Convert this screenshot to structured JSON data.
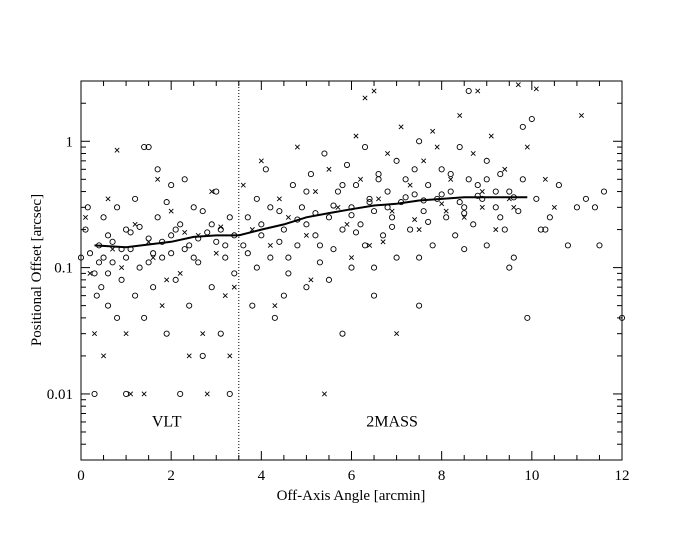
{
  "chart_data": {
    "type": "scatter",
    "title": "",
    "xlabel": "Off-Axis Angle [arcmin]",
    "ylabel": "Positional Offset [arcsec]",
    "xlim": [
      0,
      12
    ],
    "ylim": [
      0.003,
      3
    ],
    "yscale": "log",
    "xticks": [
      0,
      2,
      4,
      6,
      8,
      10,
      12
    ],
    "xtick_labels": [
      "0",
      "2",
      "4",
      "6",
      "8",
      "10",
      "12"
    ],
    "yticks": [
      0.01,
      0.1,
      1
    ],
    "ytick_labels": [
      "0.01",
      "0.1",
      "1"
    ],
    "grid": false,
    "divider_x": 3.5,
    "region_labels": [
      {
        "text": "VLT",
        "x": 1.9,
        "y": 0.0055
      },
      {
        "text": "2MASS",
        "x": 6.9,
        "y": 0.0055
      }
    ],
    "series": [
      {
        "name": "circles",
        "marker": "o",
        "points": [
          [
            0.0,
            0.12
          ],
          [
            0.1,
            0.2
          ],
          [
            0.3,
            0.01
          ],
          [
            0.3,
            0.09
          ],
          [
            0.35,
            0.06
          ],
          [
            0.4,
            0.15
          ],
          [
            0.45,
            0.07
          ],
          [
            0.5,
            0.12
          ],
          [
            0.5,
            0.25
          ],
          [
            0.6,
            0.05
          ],
          [
            0.6,
            0.18
          ],
          [
            0.7,
            0.11
          ],
          [
            0.8,
            0.04
          ],
          [
            0.8,
            0.3
          ],
          [
            0.9,
            0.08
          ],
          [
            1.0,
            0.2
          ],
          [
            1.0,
            0.01
          ],
          [
            1.1,
            0.14
          ],
          [
            1.2,
            0.06
          ],
          [
            1.2,
            0.35
          ],
          [
            1.3,
            0.1
          ],
          [
            1.4,
            0.04
          ],
          [
            1.4,
            0.9
          ],
          [
            1.5,
            0.17
          ],
          [
            1.5,
            0.9
          ],
          [
            1.6,
            0.07
          ],
          [
            1.7,
            0.25
          ],
          [
            1.7,
            0.6
          ],
          [
            1.8,
            0.12
          ],
          [
            1.9,
            0.03
          ],
          [
            2.0,
            0.18
          ],
          [
            2.0,
            0.45
          ],
          [
            2.1,
            0.08
          ],
          [
            2.2,
            0.01
          ],
          [
            2.2,
            0.22
          ],
          [
            2.3,
            0.14
          ],
          [
            2.4,
            0.05
          ],
          [
            2.5,
            0.3
          ],
          [
            2.6,
            0.11
          ],
          [
            2.7,
            0.02
          ],
          [
            2.8,
            0.19
          ],
          [
            2.9,
            0.07
          ],
          [
            3.0,
            0.16
          ],
          [
            3.0,
            0.4
          ],
          [
            3.1,
            0.03
          ],
          [
            3.2,
            0.12
          ],
          [
            3.3,
            0.25
          ],
          [
            3.3,
            0.01
          ],
          [
            3.4,
            0.09
          ],
          [
            0.2,
            0.13
          ],
          [
            0.7,
            0.16
          ],
          [
            1.1,
            0.19
          ],
          [
            1.6,
            0.13
          ],
          [
            2.1,
            0.2
          ],
          [
            2.6,
            0.17
          ],
          [
            3.1,
            0.2
          ],
          [
            0.4,
            0.11
          ],
          [
            0.9,
            0.14
          ],
          [
            1.3,
            0.21
          ],
          [
            1.8,
            0.16
          ],
          [
            2.4,
            0.15
          ],
          [
            2.9,
            0.22
          ],
          [
            3.4,
            0.18
          ],
          [
            0.6,
            0.09
          ],
          [
            1.0,
            0.12
          ],
          [
            1.5,
            0.11
          ],
          [
            2.0,
            0.13
          ],
          [
            2.5,
            0.12
          ],
          [
            3.2,
            0.15
          ],
          [
            0.15,
            0.3
          ],
          [
            1.9,
            0.33
          ],
          [
            2.7,
            0.28
          ],
          [
            2.3,
            0.5
          ],
          [
            3.6,
            0.15
          ],
          [
            3.7,
            0.25
          ],
          [
            3.8,
            0.05
          ],
          [
            3.9,
            0.35
          ],
          [
            4.0,
            0.18
          ],
          [
            4.1,
            0.6
          ],
          [
            4.2,
            0.12
          ],
          [
            4.3,
            0.04
          ],
          [
            4.4,
            0.28
          ],
          [
            4.5,
            0.2
          ],
          [
            4.6,
            0.09
          ],
          [
            4.7,
            0.45
          ],
          [
            4.8,
            0.15
          ],
          [
            4.9,
            0.3
          ],
          [
            5.0,
            0.07
          ],
          [
            5.0,
            0.22
          ],
          [
            5.1,
            0.55
          ],
          [
            5.2,
            0.18
          ],
          [
            5.3,
            0.11
          ],
          [
            5.4,
            0.8
          ],
          [
            5.5,
            0.25
          ],
          [
            5.6,
            0.14
          ],
          [
            5.7,
            0.4
          ],
          [
            5.8,
            0.03
          ],
          [
            5.8,
            0.2
          ],
          [
            5.9,
            0.65
          ],
          [
            6.0,
            0.3
          ],
          [
            6.0,
            0.1
          ],
          [
            6.1,
            0.45
          ],
          [
            6.2,
            0.22
          ],
          [
            6.3,
            0.9
          ],
          [
            6.3,
            0.15
          ],
          [
            6.4,
            0.35
          ],
          [
            6.5,
            0.06
          ],
          [
            6.5,
            0.28
          ],
          [
            6.6,
            0.55
          ],
          [
            6.7,
            0.18
          ],
          [
            6.8,
            0.4
          ],
          [
            6.9,
            0.25
          ],
          [
            7.0,
            0.7
          ],
          [
            7.0,
            0.12
          ],
          [
            7.1,
            0.33
          ],
          [
            7.2,
            0.5
          ],
          [
            7.3,
            0.2
          ],
          [
            7.4,
            0.38
          ],
          [
            7.5,
            0.05
          ],
          [
            7.5,
            1.0
          ],
          [
            7.6,
            0.28
          ],
          [
            7.7,
            0.45
          ],
          [
            7.8,
            0.15
          ],
          [
            7.9,
            0.35
          ],
          [
            8.0,
            0.6
          ],
          [
            8.1,
            0.25
          ],
          [
            8.2,
            0.4
          ],
          [
            8.3,
            0.18
          ],
          [
            8.4,
            0.9
          ],
          [
            8.5,
            0.3
          ],
          [
            8.6,
            0.5
          ],
          [
            8.7,
            0.22
          ],
          [
            8.8,
            0.45
          ],
          [
            8.9,
            0.35
          ],
          [
            9.0,
            0.15
          ],
          [
            9.0,
            0.7
          ],
          [
            9.2,
            0.3
          ],
          [
            9.3,
            0.55
          ],
          [
            9.4,
            0.2
          ],
          [
            9.5,
            0.4
          ],
          [
            9.6,
            0.12
          ],
          [
            9.7,
            0.28
          ],
          [
            9.8,
            0.5
          ],
          [
            9.9,
            0.04
          ],
          [
            10.0,
            1.5
          ],
          [
            10.1,
            0.35
          ],
          [
            10.2,
            0.2
          ],
          [
            10.4,
            0.25
          ],
          [
            10.6,
            0.45
          ],
          [
            10.8,
            0.15
          ],
          [
            11.0,
            0.3
          ],
          [
            11.2,
            0.35
          ],
          [
            11.4,
            0.3
          ],
          [
            11.5,
            0.15
          ],
          [
            11.6,
            0.4
          ],
          [
            12.0,
            0.04
          ],
          [
            8.6,
            2.5
          ],
          [
            9.8,
            1.3
          ],
          [
            10.3,
            0.2
          ],
          [
            3.7,
            0.13
          ],
          [
            4.0,
            0.22
          ],
          [
            4.4,
            0.16
          ],
          [
            4.8,
            0.24
          ],
          [
            5.2,
            0.27
          ],
          [
            5.6,
            0.31
          ],
          [
            6.0,
            0.26
          ],
          [
            6.4,
            0.33
          ],
          [
            6.8,
            0.3
          ],
          [
            7.2,
            0.36
          ],
          [
            7.6,
            0.34
          ],
          [
            8.0,
            0.38
          ],
          [
            8.4,
            0.33
          ],
          [
            8.8,
            0.37
          ],
          [
            9.2,
            0.4
          ],
          [
            9.6,
            0.36
          ],
          [
            3.9,
            0.1
          ],
          [
            4.6,
            0.12
          ],
          [
            5.3,
            0.15
          ],
          [
            6.1,
            0.19
          ],
          [
            6.9,
            0.21
          ],
          [
            7.7,
            0.23
          ],
          [
            8.5,
            0.27
          ],
          [
            9.3,
            0.25
          ],
          [
            4.2,
            0.3
          ],
          [
            5.0,
            0.4
          ],
          [
            5.8,
            0.45
          ],
          [
            6.6,
            0.5
          ],
          [
            7.4,
            0.6
          ],
          [
            8.2,
            0.55
          ],
          [
            9.0,
            0.5
          ],
          [
            4.5,
            0.06
          ],
          [
            5.5,
            0.08
          ],
          [
            6.5,
            0.1
          ],
          [
            7.5,
            0.12
          ],
          [
            8.5,
            0.14
          ],
          [
            9.5,
            0.1
          ]
        ]
      },
      {
        "name": "crosses",
        "marker": "x",
        "points": [
          [
            0.1,
            0.25
          ],
          [
            0.5,
            0.02
          ],
          [
            0.6,
            0.35
          ],
          [
            0.9,
            0.1
          ],
          [
            1.0,
            0.03
          ],
          [
            1.2,
            0.22
          ],
          [
            1.4,
            0.01
          ],
          [
            1.6,
            0.12
          ],
          [
            1.8,
            0.05
          ],
          [
            2.0,
            0.28
          ],
          [
            2.2,
            0.09
          ],
          [
            2.4,
            0.02
          ],
          [
            2.6,
            0.18
          ],
          [
            2.8,
            0.01
          ],
          [
            3.0,
            0.13
          ],
          [
            3.2,
            0.06
          ],
          [
            0.8,
            0.85
          ],
          [
            1.7,
            0.5
          ],
          [
            2.9,
            0.4
          ],
          [
            0.3,
            0.03
          ],
          [
            1.1,
            0.01
          ],
          [
            2.7,
            0.03
          ],
          [
            3.3,
            0.02
          ],
          [
            0.7,
            0.14
          ],
          [
            1.5,
            0.16
          ],
          [
            2.3,
            0.19
          ],
          [
            3.1,
            0.21
          ],
          [
            0.2,
            0.09
          ],
          [
            1.9,
            0.08
          ],
          [
            3.4,
            0.07
          ],
          [
            3.6,
            0.45
          ],
          [
            3.8,
            0.2
          ],
          [
            4.0,
            0.7
          ],
          [
            4.2,
            0.15
          ],
          [
            4.4,
            0.35
          ],
          [
            4.6,
            0.25
          ],
          [
            4.8,
            0.9
          ],
          [
            5.0,
            0.18
          ],
          [
            5.2,
            0.4
          ],
          [
            5.4,
            0.01
          ],
          [
            5.5,
            0.6
          ],
          [
            5.7,
            0.3
          ],
          [
            5.9,
            0.22
          ],
          [
            6.1,
            1.1
          ],
          [
            6.2,
            0.5
          ],
          [
            6.4,
            0.15
          ],
          [
            6.5,
            2.5
          ],
          [
            6.6,
            0.35
          ],
          [
            6.8,
            0.8
          ],
          [
            6.9,
            0.28
          ],
          [
            7.0,
            0.03
          ],
          [
            7.1,
            1.3
          ],
          [
            7.3,
            0.45
          ],
          [
            7.5,
            0.2
          ],
          [
            7.6,
            0.7
          ],
          [
            7.8,
            1.2
          ],
          [
            8.0,
            0.32
          ],
          [
            8.2,
            0.5
          ],
          [
            8.4,
            1.6
          ],
          [
            8.5,
            0.25
          ],
          [
            8.7,
            0.8
          ],
          [
            8.9,
            0.4
          ],
          [
            9.1,
            1.1
          ],
          [
            9.2,
            0.2
          ],
          [
            9.4,
            0.6
          ],
          [
            9.6,
            0.3
          ],
          [
            9.7,
            2.8
          ],
          [
            9.9,
            0.9
          ],
          [
            10.1,
            2.6
          ],
          [
            10.3,
            0.5
          ],
          [
            10.5,
            0.3
          ],
          [
            11.1,
            1.6
          ],
          [
            6.3,
            2.2
          ],
          [
            7.9,
            0.9
          ],
          [
            8.8,
            2.5
          ],
          [
            4.3,
            0.05
          ],
          [
            5.1,
            0.08
          ],
          [
            6.0,
            0.12
          ],
          [
            6.7,
            0.16
          ],
          [
            7.4,
            0.24
          ],
          [
            8.1,
            0.28
          ],
          [
            8.9,
            0.3
          ],
          [
            9.5,
            0.35
          ]
        ]
      },
      {
        "name": "running median",
        "marker": "line",
        "points": [
          [
            0.3,
            0.15
          ],
          [
            1.0,
            0.145
          ],
          [
            2.0,
            0.16
          ],
          [
            2.5,
            0.175
          ],
          [
            3.0,
            0.18
          ],
          [
            3.5,
            0.18
          ],
          [
            4.0,
            0.2
          ],
          [
            4.5,
            0.22
          ],
          [
            5.0,
            0.25
          ],
          [
            5.5,
            0.27
          ],
          [
            6.0,
            0.29
          ],
          [
            6.5,
            0.31
          ],
          [
            7.0,
            0.32
          ],
          [
            7.5,
            0.34
          ],
          [
            8.0,
            0.35
          ],
          [
            8.5,
            0.36
          ],
          [
            9.0,
            0.36
          ],
          [
            9.5,
            0.36
          ],
          [
            9.9,
            0.36
          ]
        ]
      }
    ]
  }
}
